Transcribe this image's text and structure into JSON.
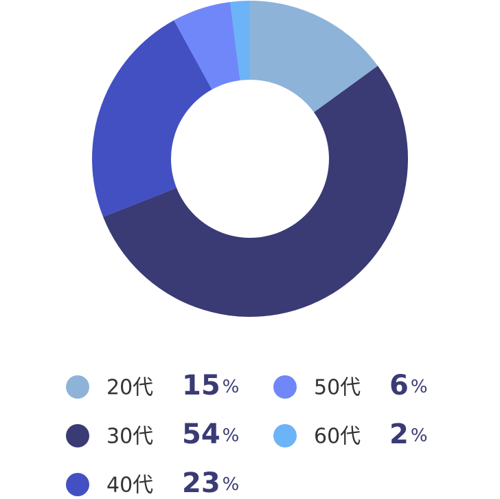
{
  "chart_data": {
    "type": "donut",
    "categories": [
      "20代",
      "30代",
      "40代",
      "50代",
      "60代"
    ],
    "values": [
      15,
      54,
      23,
      6,
      2
    ],
    "value_labels": [
      "15%",
      "54%",
      "23%",
      "6%",
      "2%"
    ],
    "colors": [
      "#8db3d9",
      "#3a3a75",
      "#4350c2",
      "#6f87f8",
      "#6cb3f8"
    ]
  }
}
